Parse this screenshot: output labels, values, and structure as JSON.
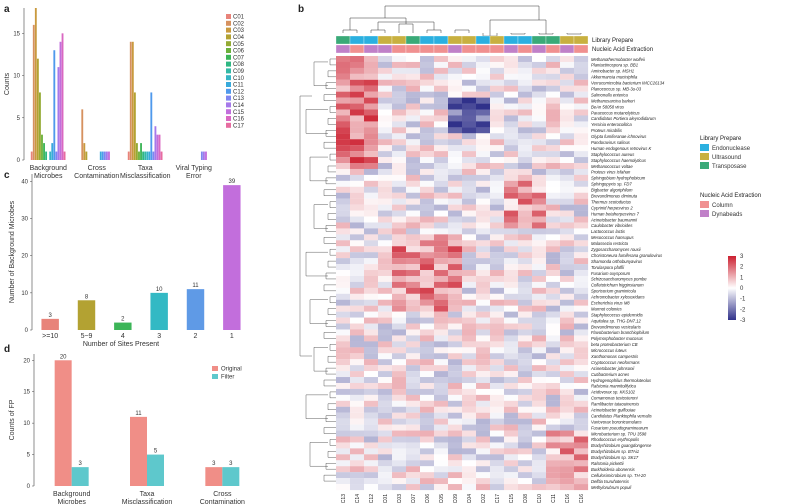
{
  "panels": {
    "a": "a",
    "b": "b",
    "c": "c",
    "d": "d"
  },
  "chart_data": [
    {
      "id": "a",
      "type": "bar",
      "ylabel": "Counts",
      "ylim": [
        0,
        18
      ],
      "yticks": [
        0,
        5,
        10,
        15
      ],
      "categories": [
        "Background\nMicrobes",
        "Cross\nContamination",
        "Taxa\nMisclassification",
        "Viral Typing\nError"
      ],
      "legend_placement": "right",
      "series": [
        {
          "name": "C01",
          "color": "#e8837a",
          "values": [
            1,
            0,
            1,
            0
          ]
        },
        {
          "name": "C02",
          "color": "#d6915f",
          "values": [
            16,
            6,
            14,
            0
          ]
        },
        {
          "name": "C03",
          "color": "#c99a3e",
          "values": [
            18,
            2,
            14,
            0
          ]
        },
        {
          "name": "C04",
          "color": "#b3a232",
          "values": [
            12,
            1,
            8,
            0
          ]
        },
        {
          "name": "C05",
          "color": "#94aa33",
          "values": [
            8,
            0,
            2,
            0
          ]
        },
        {
          "name": "C06",
          "color": "#6bb13c",
          "values": [
            3,
            0,
            1,
            0
          ]
        },
        {
          "name": "C07",
          "color": "#3cb558",
          "values": [
            2,
            0,
            2,
            0
          ]
        },
        {
          "name": "C08",
          "color": "#2fb783",
          "values": [
            1,
            0,
            1,
            0
          ]
        },
        {
          "name": "C09",
          "color": "#33b9a6",
          "values": [
            0,
            0,
            1,
            0
          ]
        },
        {
          "name": "C10",
          "color": "#36b5c4",
          "values": [
            1,
            0,
            1,
            0
          ]
        },
        {
          "name": "C11",
          "color": "#38aadb",
          "values": [
            2,
            1,
            1,
            0
          ]
        },
        {
          "name": "C12",
          "color": "#4f99ec",
          "values": [
            13,
            1,
            8,
            0
          ]
        },
        {
          "name": "C13",
          "color": "#7f86f0",
          "values": [
            1,
            1,
            1,
            1
          ]
        },
        {
          "name": "C14",
          "color": "#a679ea",
          "values": [
            11,
            1,
            4,
            1
          ]
        },
        {
          "name": "C15",
          "color": "#c26edc",
          "values": [
            14,
            1,
            3,
            1
          ]
        },
        {
          "name": "C16",
          "color": "#d968c2",
          "values": [
            15,
            0,
            3,
            0
          ]
        },
        {
          "name": "C17",
          "color": "#e76ca0",
          "values": [
            1,
            0,
            1,
            0
          ]
        }
      ]
    },
    {
      "id": "c",
      "type": "bar",
      "xlabel": "Number of Sites Present",
      "ylabel": "Number of Background Microbes",
      "ylim": [
        0,
        42
      ],
      "yticks": [
        0,
        10,
        20,
        30,
        40
      ],
      "categories": [
        ">=10",
        "5~9",
        "4",
        "3",
        "2",
        "1"
      ],
      "values": [
        3,
        8,
        2,
        10,
        11,
        39
      ],
      "labels": [
        "3",
        "8",
        "2",
        "10",
        "11",
        "39"
      ],
      "colors": [
        "#e8837a",
        "#b3a232",
        "#3cb558",
        "#33b9c4",
        "#5f9ae6",
        "#c26edc"
      ]
    },
    {
      "id": "d",
      "type": "bar",
      "ylabel": "Counts of FP",
      "ylim": [
        0,
        21
      ],
      "yticks": [
        0,
        5,
        10,
        15,
        20
      ],
      "categories": [
        "Background\nMicrobes",
        "Taxa\nMisclassification",
        "Cross\nContamination"
      ],
      "legend_placement": "top-right",
      "series": [
        {
          "name": "Original",
          "color": "#f08e87",
          "values": [
            20,
            11,
            3
          ],
          "labels": [
            "20",
            "11",
            "3"
          ]
        },
        {
          "name": "Filter",
          "color": "#5ec8cc",
          "values": [
            3,
            5,
            3
          ],
          "labels": [
            "3",
            "5",
            "3"
          ]
        }
      ]
    },
    {
      "id": "b",
      "type": "heatmap",
      "color_scale": {
        "min": -3,
        "max": 3,
        "ticks": [
          3,
          2,
          1,
          0,
          -1,
          -2,
          -3
        ],
        "low": "#30318a",
        "mid": "#ffffff",
        "high": "#cc2030"
      },
      "columns": [
        "C13",
        "C14",
        "C12",
        "C01",
        "C03",
        "C07",
        "C06",
        "C05",
        "C09",
        "C04",
        "C02",
        "C17",
        "C15",
        "C08",
        "C10",
        "C11",
        "C16",
        "C16"
      ],
      "tracks": [
        {
          "name": "Library Prepare",
          "values": [
            "Transposase",
            "Endonuclease",
            "Endonuclease",
            "Ultrasound",
            "Ultrasound",
            "Transposase",
            "Endonuclease",
            "Endonuclease",
            "Ultrasound",
            "Ultrasound",
            "Endonuclease",
            "Ultrasound",
            "Endonuclease",
            "Endonuclease",
            "Transposase",
            "Transposase",
            "Ultrasound",
            "Ultrasound"
          ]
        },
        {
          "name": "Nucleic Acid Extraction",
          "values": [
            "Dynabeads",
            "Column",
            "Dynabeads",
            "Dynabeads",
            "Column",
            "Column",
            "Column",
            "Column",
            "Dynabeads",
            "Column",
            "Column",
            "Column",
            "Dynabeads",
            "Column",
            "Dynabeads",
            "Column",
            "Dynabeads",
            "Column"
          ]
        }
      ],
      "legends": [
        {
          "title": "Library Prepare",
          "items": [
            {
              "label": "Endonuclease",
              "color": "#2bb0e0"
            },
            {
              "label": "Ultrasound",
              "color": "#c8b040"
            },
            {
              "label": "Transposase",
              "color": "#3aaa78"
            }
          ]
        },
        {
          "title": "Nucleic Acid Extraction",
          "items": [
            {
              "label": "Column",
              "color": "#f09090"
            },
            {
              "label": "Dynabeads",
              "color": "#c080c8"
            }
          ]
        }
      ],
      "rows": [
        "Methanothermobacter wolfeii",
        "Plantactinospora sp. BB1",
        "Aminobacter sp. MSH1",
        "Akkermansia muciniphila",
        "Verrucomicrobia bacterium IMCC26134",
        "Planococcus sp. MB-3u-03",
        "Salmonella enterica",
        "Methanosarcina barkeri",
        "BeAn 58058 virus",
        "Paracoccus mutanolyticus",
        "Candidatus Portiera aleyrodidarum",
        "Yersinia enterocolitica",
        "Proteus mirabilis",
        "Glypta fumiferanae ichnovirus",
        "Pandoravirus salinus",
        "Human endogenous retrovirus K",
        "Staphylococcus aureus",
        "Staphylococcus haemolyticus",
        "Methanococcus voltae",
        "Proteus virus Isfahan",
        "Sphingobium hydrophobicum",
        "Sphingopyxis sp. FD7",
        "Bigbacter algoriphilum",
        "Brevundimonas diminuta",
        "Thermus scotoductus",
        "Cyprinid herpesvirus 2",
        "Human betaherpesvirus 7",
        "Acinetobacter baumannii",
        "Caulobacter vibrioides",
        "Lactococcus lactis",
        "Mesococcus hansupus",
        "Malassezia restricta",
        "Zygosaccharomyces rouxii",
        "Choristoneura fumiferana granulovirus",
        "Shamonda orthobunyavirus",
        "Torulaspora pfaffii",
        "Fusarium oxysporum",
        "Schizosaccharomyces pombe",
        "Colletotrichum higginsianum",
        "Sporisorium graminicola",
        "Achromobacter xylosoxidans",
        "Escherichia virus M8",
        "Marmot colonies",
        "Staphylococcus epidermidis",
        "Aquitalea sp. THG-DN7.12",
        "Brevundimonas vesicularis",
        "Flavobacterium branchiophilum",
        "Polymorphobacter mucosus",
        "beta proteobacterium CB",
        "Micrococcus luteus",
        "Xanthomonas campestris",
        "Cryptococcus neoformans",
        "Acinetobacter johnsonii",
        "Cutibacterium acnes",
        "Hydrogenophilus thermoluteolus",
        "Ralstonia mannitolilytica",
        "Acidovorax sp. KKS102",
        "Comamonas testosteroni",
        "Ramlibacter tataouinensis",
        "Acinetobacter guillouiae",
        "Candidatus Planktophila vernalis",
        "Variovorax boronicumulans",
        "Fusarium pseudograminearum",
        "Microbacterium sp. TPU 3598",
        "Rhodococcus erythropolis",
        "Bradyrhizobium guangdongense",
        "Bradyrhizobium sp. BTAi1",
        "Bradyrhizobium sp. SK17",
        "Ralstonia pickettii",
        "Burkholderia ubonensis",
        "Cellulosimicrobium sp. TH-20",
        "Delftia tsuruhatensis",
        "Methylorubrum populi"
      ]
    }
  ]
}
